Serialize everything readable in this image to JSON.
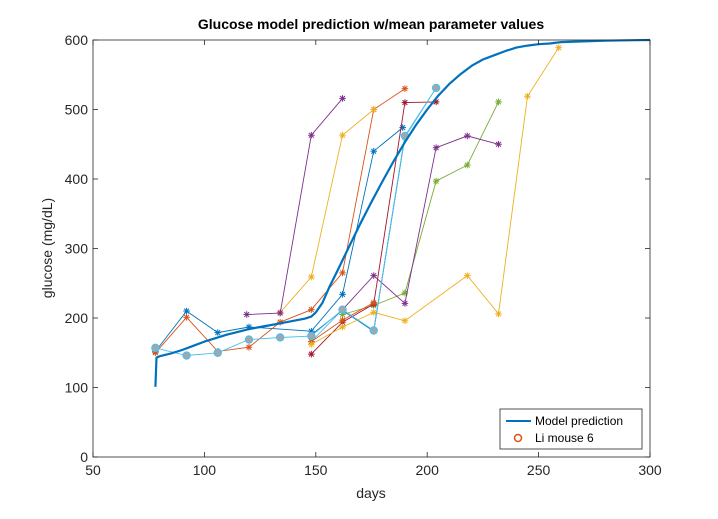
{
  "chart_data": {
    "type": "line",
    "title": "Glucose model prediction w/mean parameter values",
    "xlabel": "days",
    "ylabel": "glucose (mg/dL)",
    "xlim": [
      50,
      300
    ],
    "ylim": [
      0,
      600
    ],
    "xticks": [
      50,
      100,
      150,
      200,
      250,
      300
    ],
    "yticks": [
      0,
      100,
      200,
      300,
      400,
      500,
      600
    ],
    "grid": false,
    "legend_position": "bottom-right",
    "legend": [
      "Model prediction",
      "Li mouse 6"
    ],
    "model": {
      "name": "Model prediction",
      "color": "#0072BD",
      "x": [
        78,
        78.5,
        80,
        85,
        90,
        95,
        100,
        105,
        110,
        115,
        120,
        125,
        130,
        135,
        140,
        145,
        148,
        150,
        153,
        156,
        160,
        165,
        170,
        175,
        180,
        185,
        190,
        195,
        200,
        205,
        210,
        215,
        220,
        225,
        230,
        235,
        240,
        245,
        250,
        255,
        260,
        270,
        280,
        290,
        300
      ],
      "y": [
        101,
        143,
        145,
        149,
        154,
        160,
        166,
        171,
        176,
        180,
        184,
        187,
        190,
        193,
        196,
        199,
        202,
        208,
        222,
        244,
        270,
        303,
        336,
        367,
        397,
        426,
        453,
        478,
        500,
        520,
        537,
        551,
        563,
        572,
        578,
        584,
        589,
        592,
        594,
        595,
        597,
        598,
        599,
        599.5,
        600
      ]
    },
    "mice": [
      {
        "color": "#0072BD",
        "marker": "star",
        "x": [
          78,
          92,
          106,
          120,
          148,
          162,
          176,
          189
        ],
        "y": [
          152,
          210,
          179,
          187,
          181,
          234,
          440,
          474
        ]
      },
      {
        "color": "#D95319",
        "marker": "star",
        "x": [
          78,
          92,
          106,
          120,
          134,
          148,
          162,
          176,
          190
        ],
        "y": [
          150,
          201,
          152,
          158,
          194,
          212,
          265,
          500,
          530
        ]
      },
      {
        "color": "#EDB120",
        "marker": "star",
        "x": [
          134,
          148,
          162,
          176
        ],
        "y": [
          208,
          259,
          463,
          500
        ]
      },
      {
        "color": "#7E2F8E",
        "marker": "star",
        "x": [
          119,
          134,
          148,
          162
        ],
        "y": [
          205,
          207,
          463,
          516
        ]
      },
      {
        "color": "#77AC30",
        "marker": "star",
        "x": [
          162,
          176,
          190,
          204,
          218,
          232
        ],
        "y": [
          205,
          218,
          236,
          397,
          420,
          511
        ]
      },
      {
        "color": "#4DBEEE",
        "marker": "star",
        "x": [
          148,
          162,
          176,
          190,
          204
        ],
        "y": [
          166,
          212,
          182,
          460,
          531
        ]
      },
      {
        "color": "#A2142F",
        "marker": "star",
        "x": [
          148,
          162,
          176,
          190,
          204
        ],
        "y": [
          148,
          194,
          220,
          510,
          511
        ]
      },
      {
        "color": "#0072BD",
        "marker": "star",
        "x": [
          148,
          162,
          176,
          190
        ],
        "y": [
          176,
          211,
          181,
          462
        ]
      },
      {
        "color": "#D95319",
        "marker": "star",
        "x": [
          148,
          162,
          176
        ],
        "y": [
          166,
          197,
          222
        ]
      },
      {
        "color": "#EDB120",
        "marker": "star",
        "x": [
          148,
          162,
          176,
          190,
          218,
          232,
          245,
          259
        ],
        "y": [
          162,
          187,
          208,
          196,
          261,
          206,
          519,
          589
        ]
      },
      {
        "color": "#7E2F8E",
        "marker": "star",
        "x": [
          162,
          176,
          190,
          204,
          218,
          232
        ],
        "y": [
          212,
          261,
          221,
          445,
          462,
          450
        ]
      },
      {
        "color": "#4DBEEE",
        "marker": "circle",
        "name": "Li mouse 6",
        "x": [
          78,
          92,
          106,
          120,
          134,
          148,
          162,
          176,
          190,
          204
        ],
        "y": [
          157,
          146,
          150,
          169,
          172,
          174,
          212,
          182,
          462,
          531
        ]
      }
    ],
    "legend_circle_color": "#D95319"
  }
}
